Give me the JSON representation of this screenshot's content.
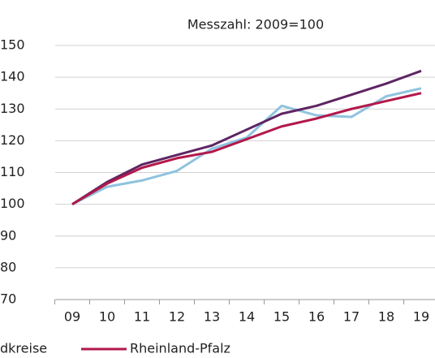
{
  "chart_data": {
    "type": "line",
    "title": "Messzahl: 2009=100",
    "categories": [
      "09",
      "10",
      "11",
      "12",
      "13",
      "14",
      "15",
      "16",
      "17",
      "18",
      "19"
    ],
    "series": [
      {
        "color": "#8fc3df",
        "values": [
          100,
          105.5,
          107.5,
          110.5,
          117.5,
          121,
          131,
          128,
          127.5,
          134,
          136.5
        ]
      },
      {
        "name": "dkreise",
        "color": "#5e2563",
        "values": [
          100,
          107,
          112.5,
          115.5,
          118.5,
          123.5,
          128.5,
          131,
          134.5,
          138,
          142
        ]
      },
      {
        "name": "Rheinland-Pfalz",
        "color": "#b3184b",
        "values": [
          100,
          106.5,
          111.5,
          114.5,
          116.5,
          120.5,
          124.5,
          127,
          130,
          132.5,
          135
        ]
      }
    ],
    "ylim": [
      70,
      150
    ],
    "yticks": [
      70,
      80,
      90,
      100,
      110,
      120,
      130,
      140,
      150
    ],
    "grid": true
  }
}
